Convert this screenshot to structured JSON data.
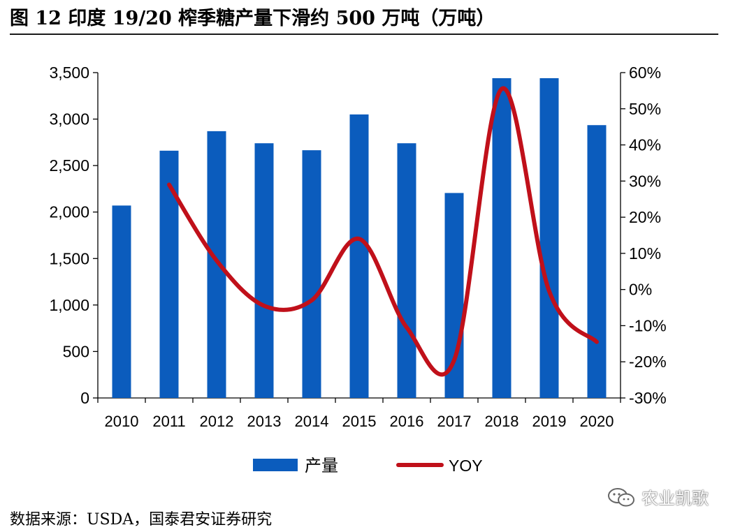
{
  "title": "图 12 印度 19/20 榨季糖产量下滑约 500 万吨（万吨）",
  "source": "数据来源：USDA，国泰君安证券研究",
  "watermark": "农业凯歌",
  "watermark_icon": "chat-bubbles-icon",
  "colors": {
    "bar": "#0b5cbd",
    "line": "#c0101a",
    "axis": "#000000"
  },
  "chart_data": {
    "type": "bar+line",
    "categories": [
      "2010",
      "2011",
      "2012",
      "2013",
      "2014",
      "2015",
      "2016",
      "2017",
      "2018",
      "2019",
      "2020"
    ],
    "series": [
      {
        "name": "产量",
        "type": "bar",
        "axis": "left",
        "values": [
          2070,
          2660,
          2870,
          2740,
          2665,
          3050,
          2740,
          2205,
          3440,
          3440,
          2935
        ]
      },
      {
        "name": "YOY",
        "type": "line",
        "axis": "right",
        "smooth": true,
        "values": [
          null,
          0.29,
          0.08,
          -0.045,
          -0.03,
          0.14,
          -0.105,
          -0.195,
          0.555,
          -0.005,
          -0.145
        ]
      }
    ],
    "y_left": {
      "min": 0,
      "max": 3500,
      "step": 500,
      "tick_labels": [
        "0",
        "500",
        "1,000",
        "1,500",
        "2,000",
        "2,500",
        "3,000",
        "3,500"
      ]
    },
    "y_right": {
      "min": -0.3,
      "max": 0.6,
      "step": 0.1,
      "tick_labels": [
        "-30%",
        "-20%",
        "-10%",
        "0%",
        "10%",
        "20%",
        "30%",
        "40%",
        "50%",
        "60%"
      ]
    },
    "grid": false,
    "legend": {
      "position": "bottom",
      "items": [
        "产量",
        "YOY"
      ]
    }
  }
}
